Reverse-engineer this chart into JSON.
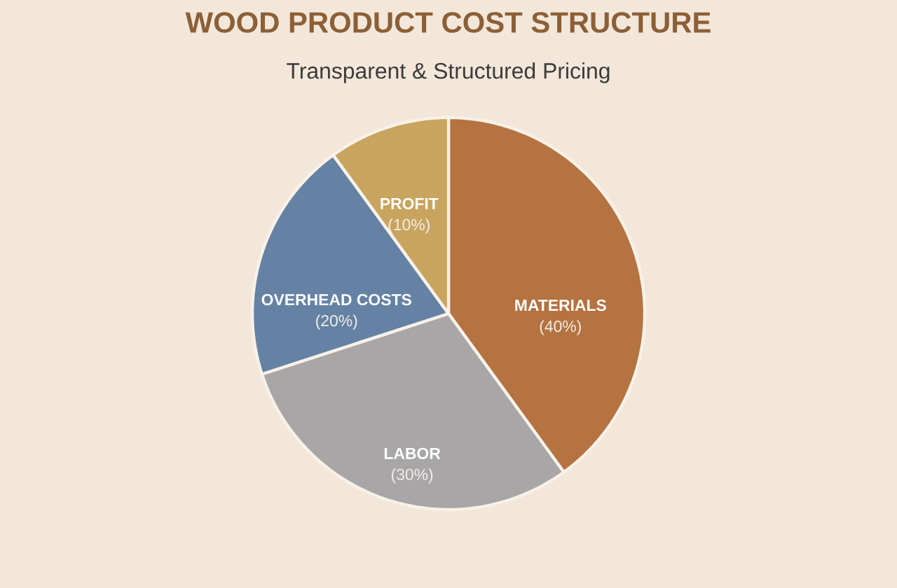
{
  "chart_data": {
    "type": "pie",
    "title": "WOOD PRODUCT COST STRUCTURE",
    "subtitle": "Transparent & Structured Pricing",
    "categories": [
      "MATERIALS",
      "LABOR",
      "OVERHEAD COSTS",
      "PROFIT"
    ],
    "values": [
      40,
      30,
      20,
      10
    ],
    "colors": [
      "#b47341",
      "#a8a6a7",
      "#6582a4",
      "#c8a45f"
    ],
    "value_labels": [
      "(40%)",
      "(30%)",
      "(20%)",
      "(10%)"
    ]
  }
}
